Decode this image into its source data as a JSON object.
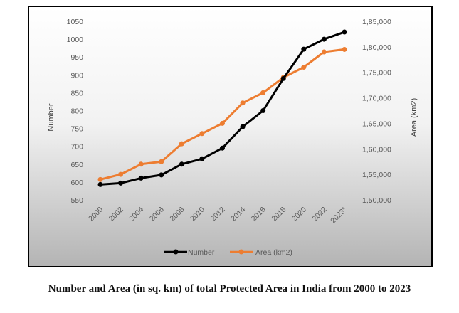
{
  "caption": "Number and Area (in sq. km) of total Protected Area in India from 2000 to 2023",
  "chart_data": {
    "type": "line",
    "x": [
      "2000",
      "2002",
      "2004",
      "2006",
      "2008",
      "2010",
      "2012",
      "2014",
      "2016",
      "2018",
      "2020",
      "2022",
      "2023*"
    ],
    "series": [
      {
        "name": "Number",
        "axis": "left",
        "color": "#000000",
        "values": [
          593,
          597,
          611,
          620,
          650,
          665,
          695,
          755,
          800,
          890,
          972,
          1000,
          1020
        ]
      },
      {
        "name": "Area (km2)",
        "axis": "right",
        "color": "#ED7D31",
        "values": [
          154000,
          155000,
          157000,
          157500,
          161000,
          163000,
          165000,
          169000,
          171000,
          174000,
          176000,
          179000,
          179500
        ]
      }
    ],
    "y_left": {
      "label": "Number",
      "lim": [
        550,
        1050
      ],
      "ticks": [
        550,
        600,
        650,
        700,
        750,
        800,
        850,
        900,
        950,
        1000,
        1050
      ],
      "tick_labels": [
        "550",
        "600",
        "650",
        "700",
        "750",
        "800",
        "850",
        "900",
        "950",
        "1000",
        "1050"
      ]
    },
    "y_right": {
      "label": "Area (km2)",
      "lim": [
        150000,
        185000
      ],
      "ticks": [
        150000,
        155000,
        160000,
        165000,
        170000,
        175000,
        180000,
        185000
      ],
      "tick_labels": [
        "1,50,000",
        "1,55,000",
        "1,60,000",
        "1,65,000",
        "1,70,000",
        "1,75,000",
        "1,80,000",
        "1,85,000"
      ]
    },
    "grid": false,
    "legend_position": "bottom",
    "background": "vertical-gradient-white-to-gray"
  }
}
